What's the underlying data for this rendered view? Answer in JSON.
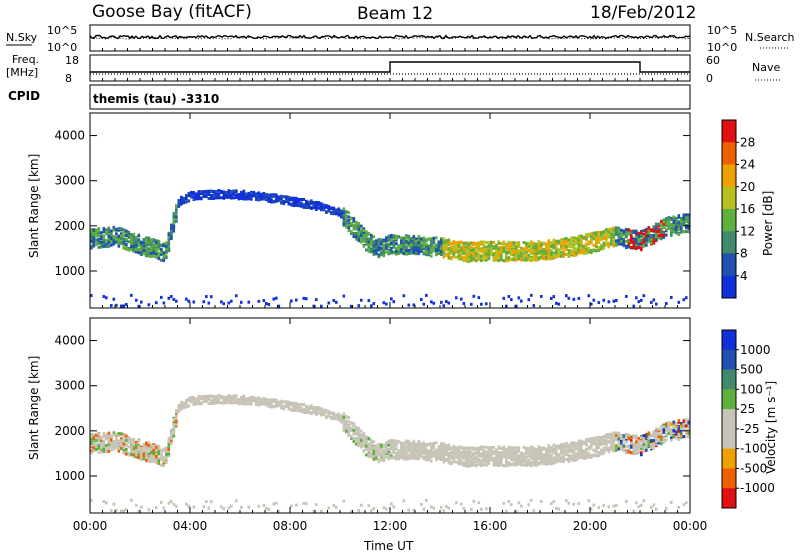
{
  "header": {
    "station": "Goose Bay (fitACF)",
    "beam": "Beam 12",
    "date": "18/Feb/2012"
  },
  "noise_panel": {
    "left_label": "N.Sky",
    "right_label": "N.Search",
    "left_ticks": [
      "10^5",
      "10^0"
    ],
    "right_ticks": [
      "10^5",
      "10^0"
    ]
  },
  "freq_panel": {
    "left_label_line1": "Freq.",
    "left_label_line2": "[MHz]",
    "right_label": "Nave",
    "left_ticks": [
      "18",
      "8"
    ],
    "right_ticks": [
      "60",
      "0"
    ]
  },
  "cpid": {
    "label": "CPID",
    "program": "themis (tau) -3310"
  },
  "colors": {
    "power_scale": [
      "#1030d8",
      "#2050b0",
      "#408a6a",
      "#60b040",
      "#b8c020",
      "#f0a000",
      "#f06000",
      "#e01010"
    ],
    "velocity_scale": [
      "#e01010",
      "#f06000",
      "#f0a000",
      "#c8c4b8",
      "#c8c4b8",
      "#60b040",
      "#408a6a",
      "#2050b0",
      "#1030d8"
    ],
    "ground_scatter": "#c8c4b8"
  },
  "power_colorbar": {
    "title": "Power [dB]",
    "ticks": [
      "28",
      "24",
      "20",
      "16",
      "12",
      "8",
      "4"
    ]
  },
  "velocity_colorbar": {
    "title": "Velocity [m s⁻¹]",
    "ticks": [
      "1000",
      "500",
      "100",
      "25",
      "-25",
      "-100",
      "-500",
      "-1000"
    ]
  },
  "chart_data": {
    "type": "heatmap",
    "xlabel": "Time UT",
    "x_ticks": [
      "00:00",
      "04:00",
      "08:00",
      "12:00",
      "16:00",
      "20:00",
      "00:00"
    ],
    "xlim_hours": [
      0,
      24
    ],
    "power_panel": {
      "ylabel": "Slant Range [km]",
      "y_ticks": [
        "4000",
        "3000",
        "2000",
        "1000"
      ],
      "ylim_km": [
        180,
        4500
      ]
    },
    "velocity_panel": {
      "ylabel": "Slant Range [km]",
      "y_ticks": [
        "4000",
        "3000",
        "2000",
        "1000"
      ],
      "ylim_km": [
        180,
        4500
      ]
    },
    "power_scale_db": [
      0,
      32
    ],
    "velocity_scale_ms": [
      -1000,
      1000
    ],
    "scatter_band_centers_km": [
      [
        0,
        1750
      ],
      [
        1,
        1800
      ],
      [
        2,
        1600
      ],
      [
        3,
        1450
      ],
      [
        3.5,
        2550
      ],
      [
        4,
        2700
      ],
      [
        5,
        2730
      ],
      [
        6,
        2720
      ],
      [
        7,
        2660
      ],
      [
        8,
        2580
      ],
      [
        9,
        2480
      ],
      [
        10,
        2300
      ],
      [
        10.5,
        2000
      ],
      [
        11,
        1700
      ],
      [
        11.5,
        1550
      ],
      [
        12,
        1620
      ],
      [
        13,
        1600
      ],
      [
        14,
        1550
      ],
      [
        15,
        1450
      ],
      [
        16,
        1480
      ],
      [
        17,
        1450
      ],
      [
        18,
        1480
      ],
      [
        19,
        1550
      ],
      [
        20,
        1650
      ],
      [
        21,
        1800
      ],
      [
        22,
        1700
      ],
      [
        23,
        2000
      ],
      [
        24,
        2100
      ]
    ],
    "freq_step_hours": [
      12,
      22
    ],
    "freq_levels": [
      "low",
      "high",
      "low"
    ]
  }
}
